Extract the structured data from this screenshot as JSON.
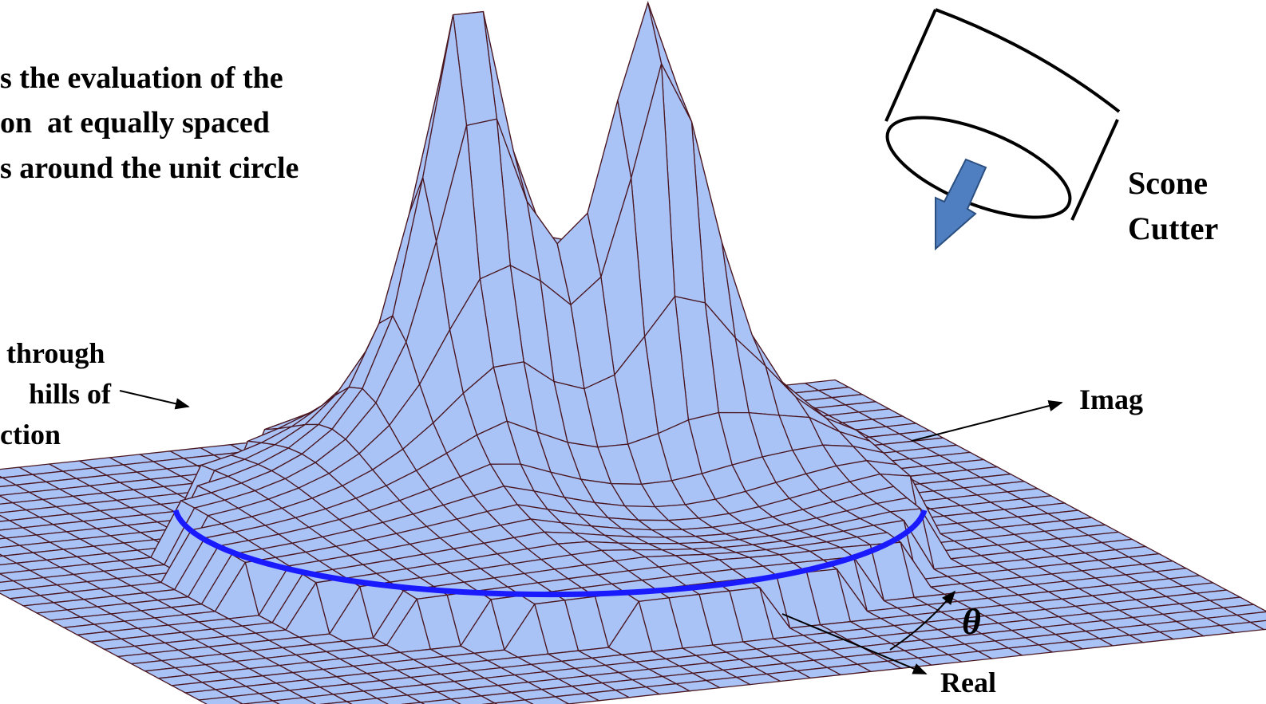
{
  "text_block": {
    "lines": [
      "s the evaluation of the",
      "on  at equally spaced",
      "s around the unit circle"
    ]
  },
  "left_label": {
    "lines": [
      "through",
      "hills of",
      "ction"
    ]
  },
  "axes": {
    "imag": "Imag",
    "real": "Real",
    "angle": "θ"
  },
  "cutter": {
    "lines": [
      "Scone",
      "Cutter"
    ]
  }
}
